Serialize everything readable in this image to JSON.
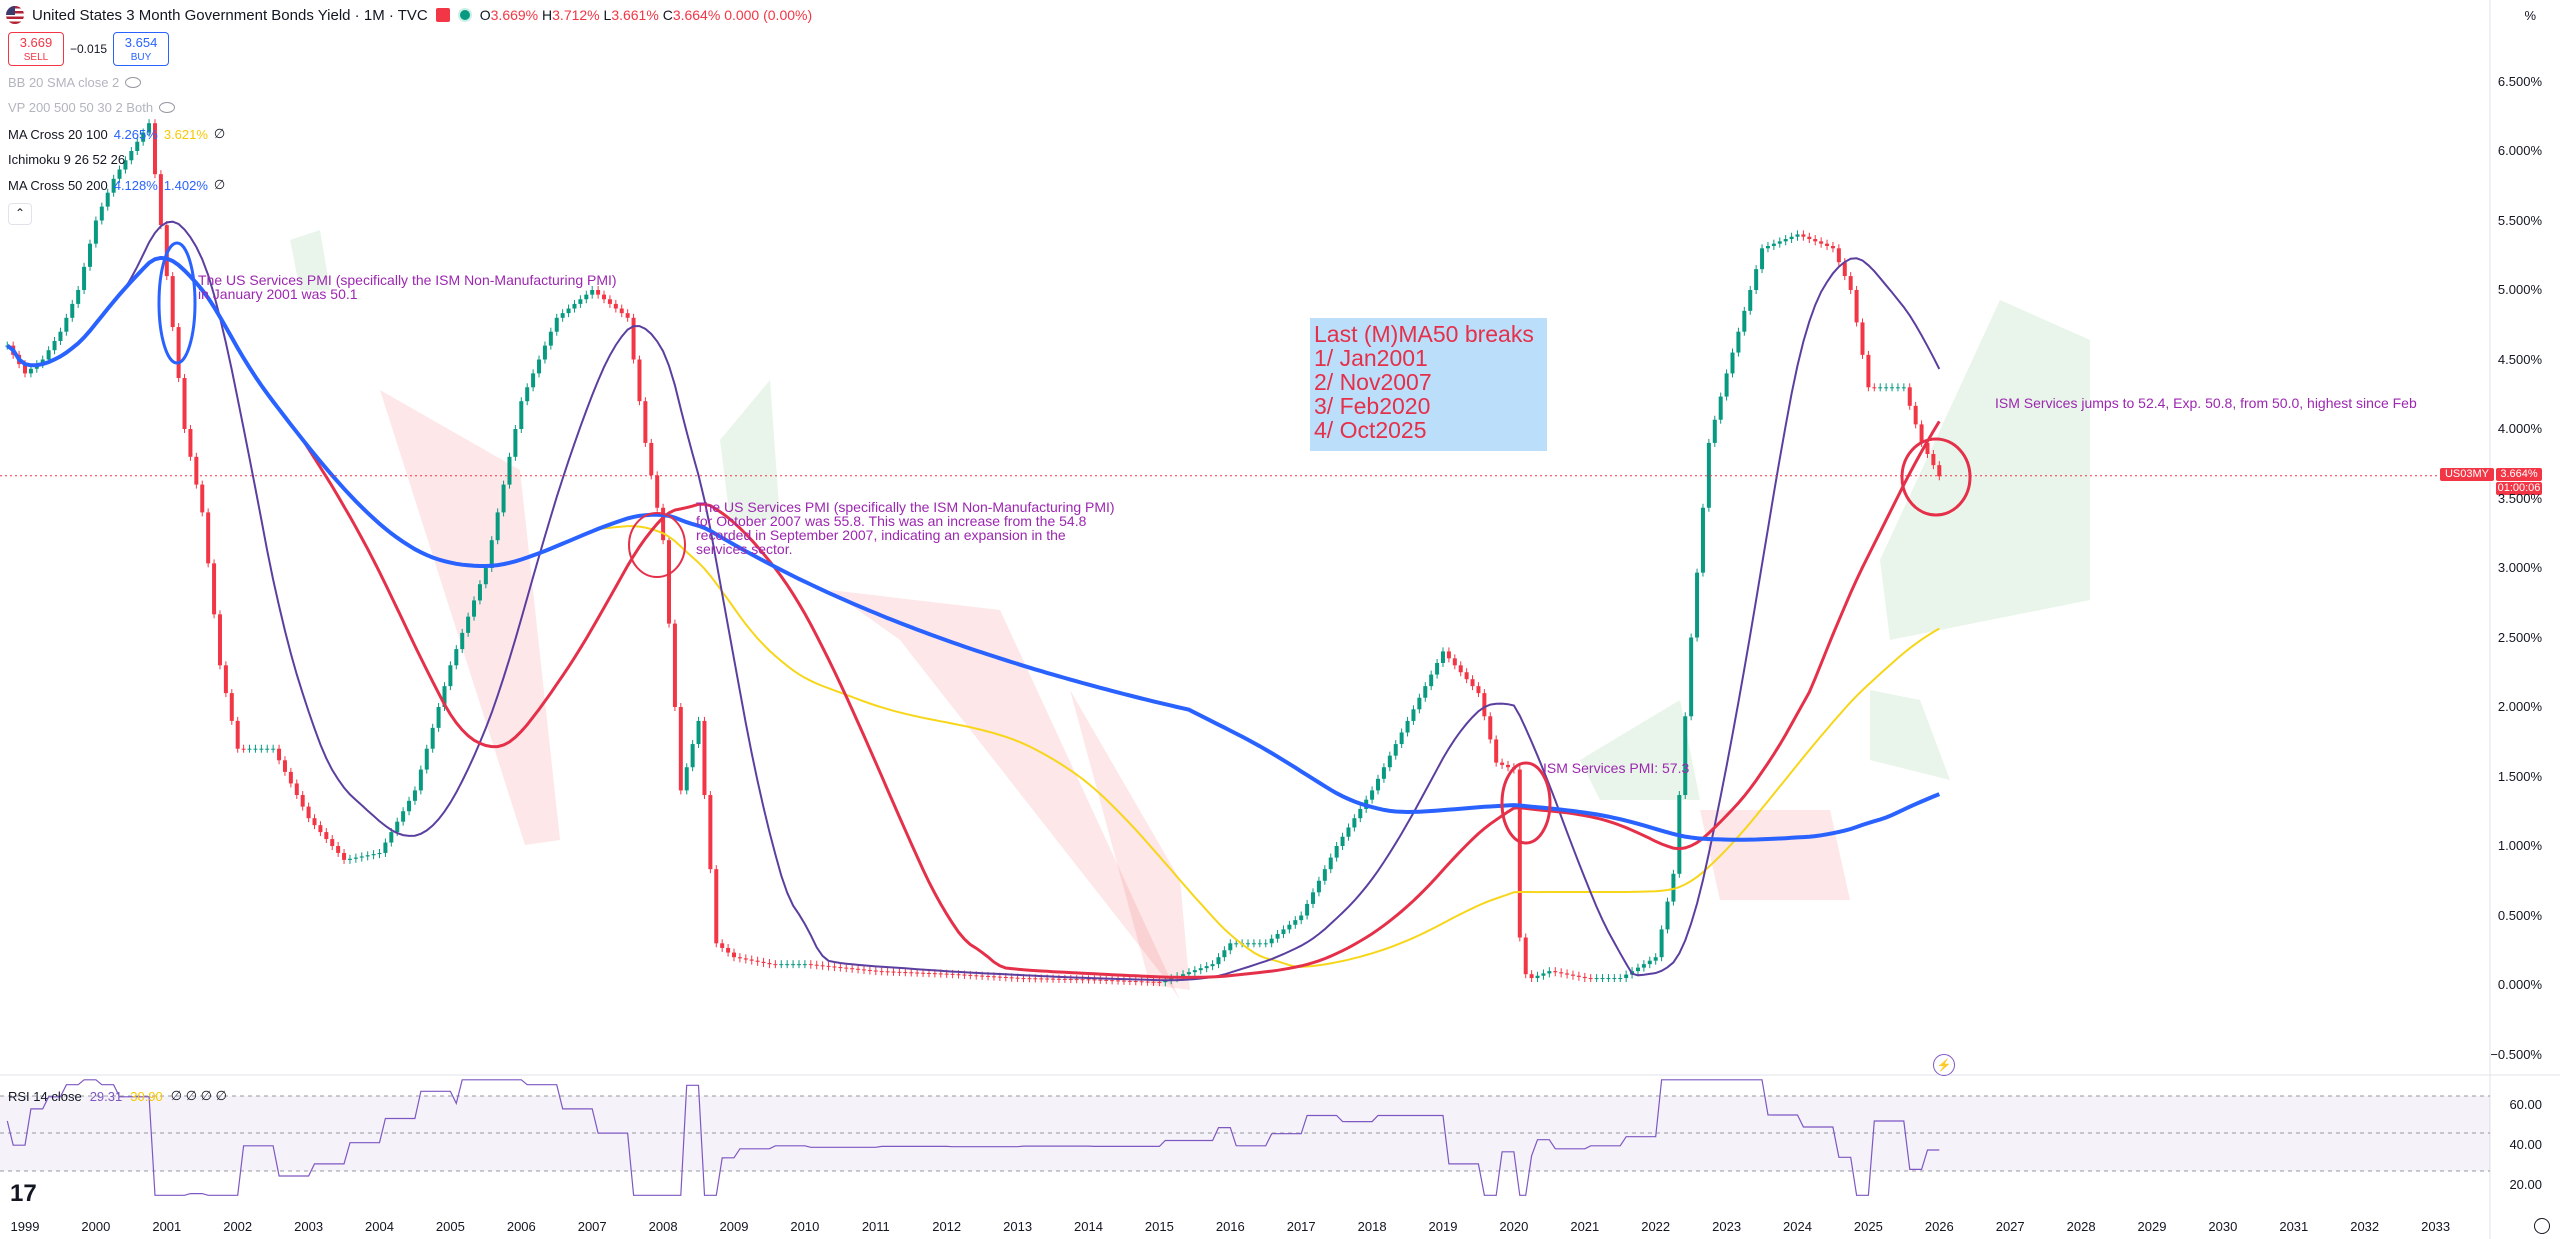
{
  "header": {
    "title": "United States 3 Month Government Bonds Yield · 1M · TVC",
    "ohlc": {
      "o_label": "O",
      "o": "3.669%",
      "h_label": "H",
      "h": "3.712%",
      "l_label": "L",
      "l": "3.661%",
      "c_label": "C",
      "c": "3.664%",
      "chg": "0.000 (0.00%)"
    },
    "sell_price": "3.669",
    "sell_label": "SELL",
    "spread": "−0.015",
    "buy_price": "3.654",
    "buy_label": "BUY",
    "percent_label": "%"
  },
  "indicators": [
    {
      "name": "BB 20 SMA close 2",
      "faded": true
    },
    {
      "name": "VP 200 500 50 30 2 Both",
      "faded": true
    },
    {
      "name": "MA Cross 20 100",
      "v1": "4.265%",
      "v2": "3.621%",
      "v3": "∅"
    },
    {
      "name": "Ichimoku 9 26 52 26"
    },
    {
      "name": "MA Cross 50 200",
      "v1": "4.128%",
      "v2": "1.402%",
      "v3": "∅"
    }
  ],
  "price_tag": {
    "symbol": "US03MY",
    "price": "3.664%",
    "timer": "01:00:06"
  },
  "annotations": {
    "jan2001": "The US Services PMI (specifically the ISM Non-Manufacturing PMI) in January 2001 was 50.1",
    "oct2007": "The US Services PMI (specifically the ISM Non-Manufacturing PMI) for October 2007 was 55.8. This was an increase from the 54.8 recorded in September 2007, indicating an expansion in the services sector.",
    "feb2020": "ISM Services PMI: 57.3",
    "oct2025": "ISM Services jumps to 52.4, Exp. 50.8, from 50.0, highest since Feb",
    "breaks_title": "Last (M)MA50 breaks",
    "breaks": [
      "1/ Jan2001",
      "2/ Nov2007",
      "3/ Feb2020",
      "4/ Oct2025"
    ]
  },
  "rsi": {
    "label": "RSI 14 close",
    "v1": "29.31",
    "v2": "30.90",
    "extra": "∅ ∅ ∅ ∅",
    "levels": [
      "60.00",
      "40.00",
      "20.00"
    ]
  },
  "tv_logo": "17",
  "colors": {
    "up": "#089981",
    "down": "#f23645",
    "ma50": "#e5304a",
    "ma200": "#2962ff",
    "ma20": "#5b3fa0",
    "ma100": "#f7d61a",
    "cloud_bear": "#f23645",
    "cloud_bull": "#4caf50",
    "rsi": "#7e57c2"
  },
  "chart_data": {
    "type": "line",
    "title": "United States 3 Month Government Bonds Yield · 1M · TVC",
    "x_ticks": [
      "1999",
      "2000",
      "2001",
      "2002",
      "2003",
      "2004",
      "2005",
      "2006",
      "2007",
      "2008",
      "2009",
      "2010",
      "2011",
      "2012",
      "2013",
      "2014",
      "2015",
      "2016",
      "2017",
      "2018",
      "2019",
      "2020",
      "2021",
      "2022",
      "2023",
      "2024",
      "2025",
      "2026",
      "2027",
      "2028",
      "2029",
      "2030",
      "2031",
      "2032",
      "2033"
    ],
    "y_ticks": [
      "6.500%",
      "6.000%",
      "5.500%",
      "5.000%",
      "4.500%",
      "4.000%",
      "3.500%",
      "3.000%",
      "2.500%",
      "2.000%",
      "1.500%",
      "1.000%",
      "0.500%",
      "0.000%",
      "−0.500%"
    ],
    "ylim": [
      -0.5,
      6.5
    ],
    "series": [
      {
        "x": [
          1998.75,
          1999.0,
          1999.25,
          1999.5,
          1999.75,
          2000.0,
          2000.25,
          2000.5,
          2000.75,
          2001.0,
          2001.25,
          2001.5,
          2001.75,
          2002.0,
          2002.5,
          2003.0,
          2003.5,
          2004.0,
          2004.5,
          2005.0,
          2005.5,
          2006.0,
          2006.5,
          2007.0,
          2007.5,
          2007.75,
          2008.0,
          2008.25,
          2008.5,
          2008.75,
          2009.0,
          2009.5,
          2010.0,
          2011.0,
          2012.0,
          2013.0,
          2014.0,
          2015.0,
          2015.75,
          2016.0,
          2016.5,
          2017.0,
          2017.5,
          2018.0,
          2018.5,
          2019.0,
          2019.5,
          2019.75,
          2020.0,
          2020.1,
          2020.25,
          2020.5,
          2021.0,
          2021.5,
          2022.0,
          2022.25,
          2022.5,
          2022.75,
          2023.0,
          2023.5,
          2024.0,
          2024.5,
          2024.75,
          2025.0,
          2025.5,
          2025.75,
          2026.0
        ],
        "y": [
          4.6,
          4.4,
          4.5,
          4.7,
          5.0,
          5.5,
          5.8,
          6.0,
          6.2,
          5.1,
          4.0,
          3.4,
          2.3,
          1.7,
          1.7,
          1.2,
          0.9,
          0.95,
          1.4,
          2.3,
          3.0,
          4.2,
          4.8,
          5.0,
          4.8,
          3.9,
          3.2,
          1.4,
          1.9,
          0.3,
          0.2,
          0.15,
          0.15,
          0.1,
          0.08,
          0.05,
          0.04,
          0.02,
          0.15,
          0.3,
          0.3,
          0.5,
          1.0,
          1.4,
          1.9,
          2.4,
          2.1,
          1.6,
          1.55,
          0.1,
          0.05,
          0.1,
          0.05,
          0.05,
          0.2,
          0.8,
          2.5,
          3.9,
          4.4,
          5.3,
          5.4,
          5.3,
          5.0,
          4.3,
          4.3,
          3.9,
          3.66
        ]
      }
    ]
  }
}
